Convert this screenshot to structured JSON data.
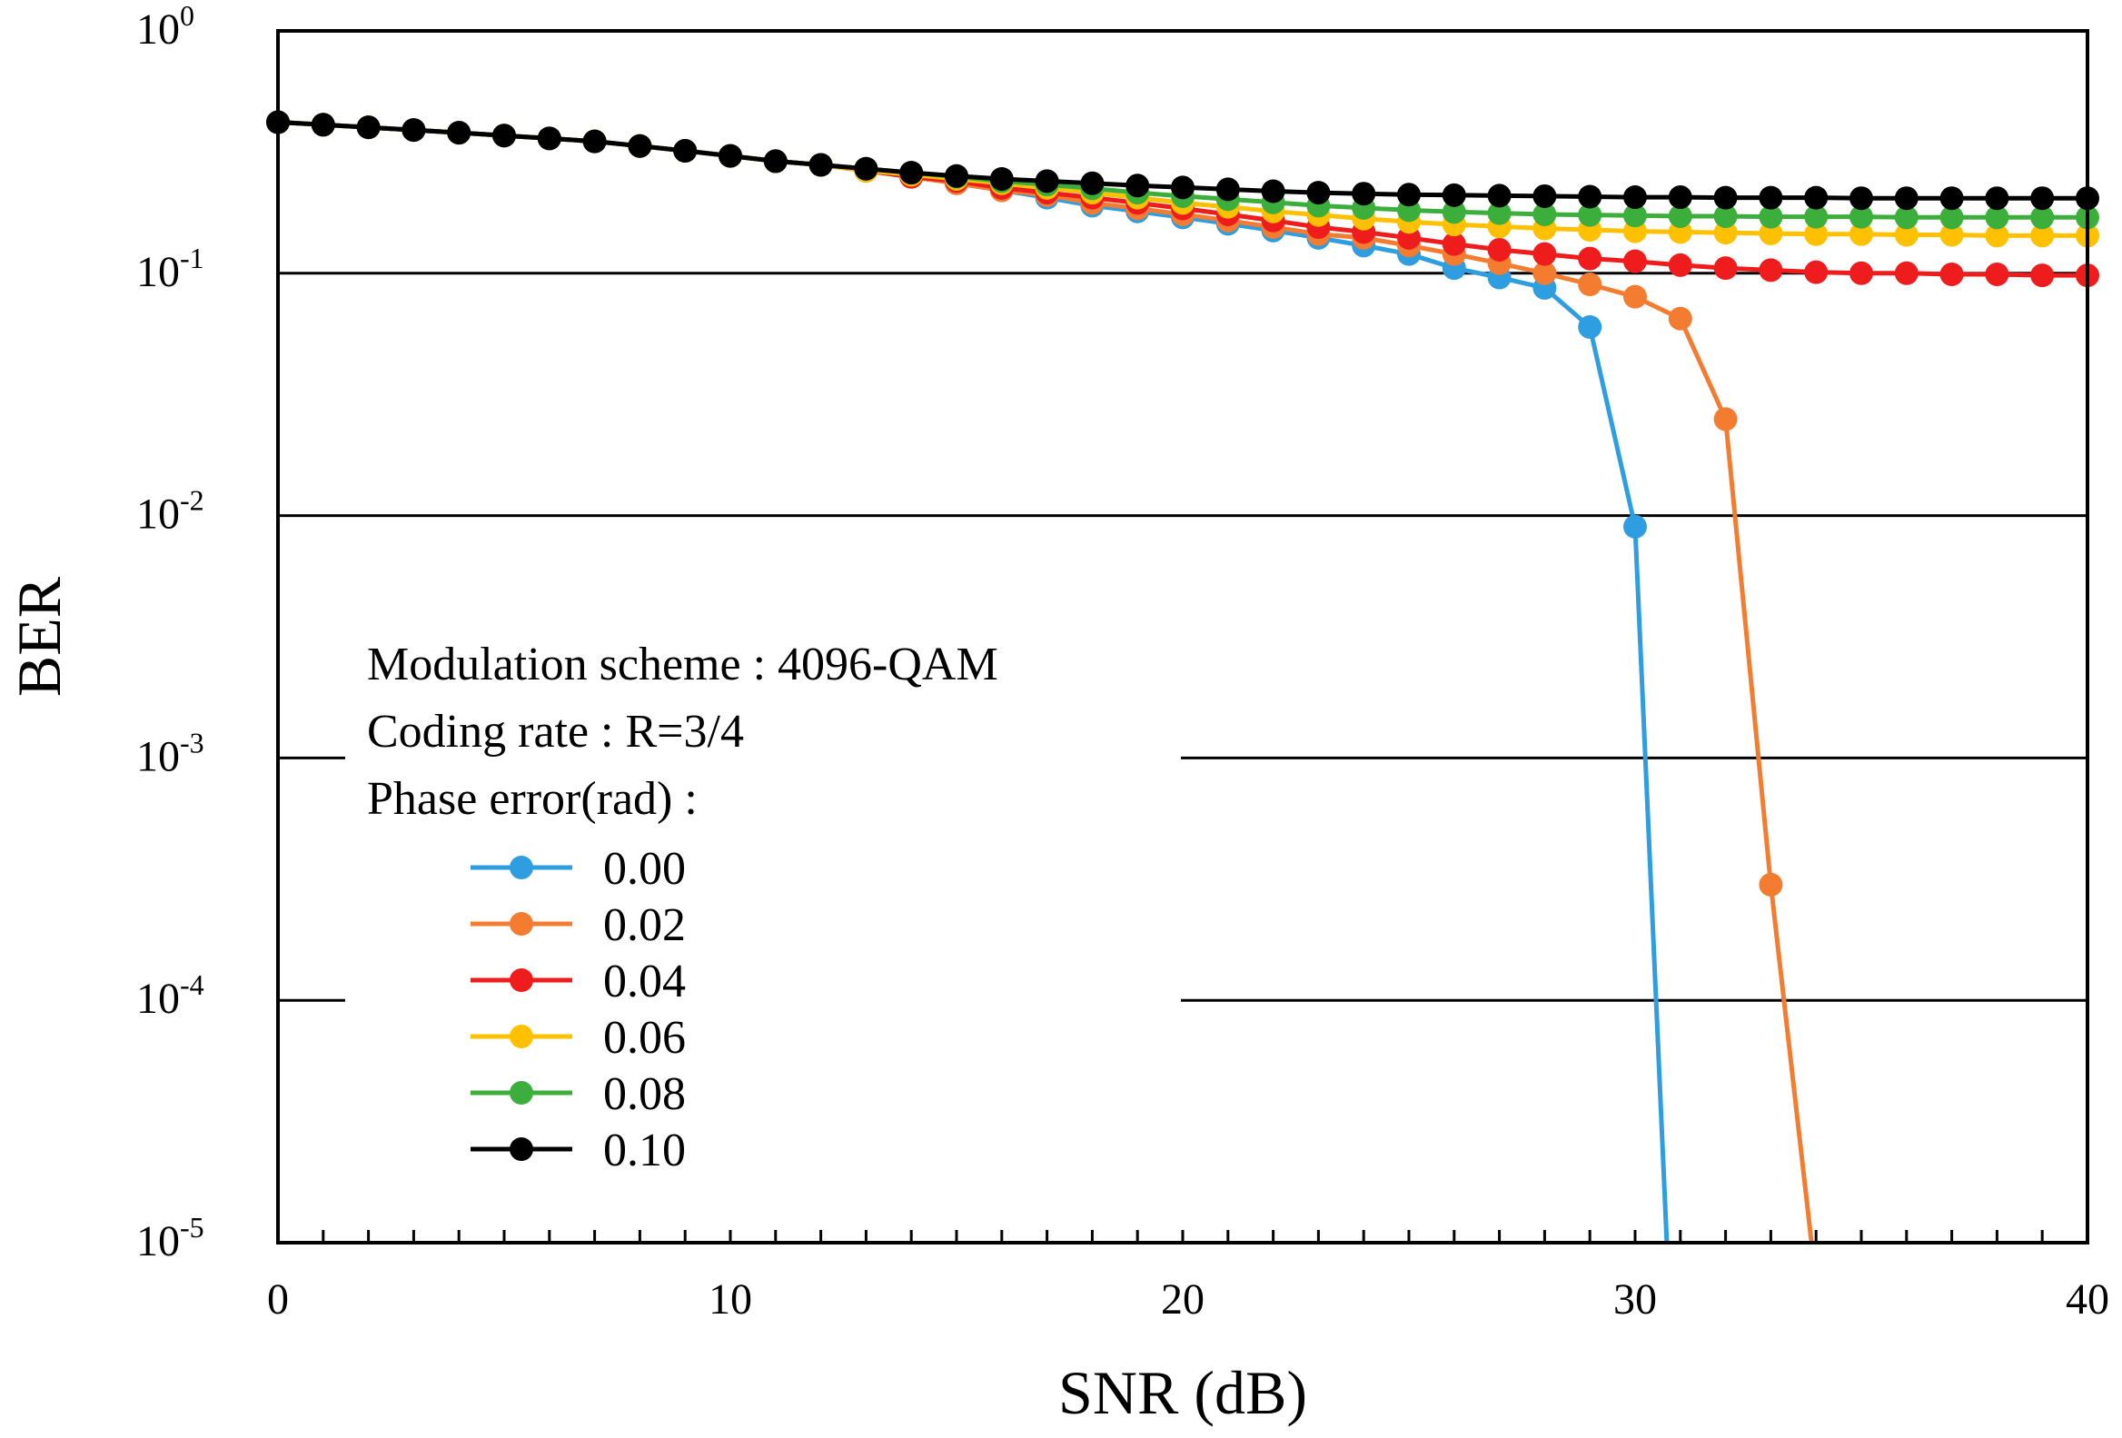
{
  "chart_data": {
    "type": "line",
    "title": "",
    "xlabel": "SNR (dB)",
    "ylabel": "BER",
    "xlim": [
      0,
      40
    ],
    "ylim": [
      1e-05,
      1
    ],
    "yscale": "log",
    "x_ticks": [
      0,
      10,
      20,
      30,
      40
    ],
    "x_tick_labels": [
      "0",
      "10",
      "20",
      "30",
      "40"
    ],
    "y_ticks": [
      1,
      0.1,
      0.01,
      0.001,
      0.0001,
      1e-05
    ],
    "y_tick_labels": [
      {
        "base": "10",
        "exp": "0"
      },
      {
        "base": "10",
        "exp": "-1"
      },
      {
        "base": "10",
        "exp": "-2"
      },
      {
        "base": "10",
        "exp": "-3"
      },
      {
        "base": "10",
        "exp": "-4"
      },
      {
        "base": "10",
        "exp": "-5"
      }
    ],
    "grid": "horizontal",
    "legend": {
      "placement": "bottom-left",
      "lines": [
        "Modulation scheme : 4096-QAM",
        "Coding rate : R=3/4",
        "Phase error(rad) :"
      ]
    },
    "series": [
      {
        "name": "0.00",
        "color": "#2e9ee0",
        "x": [
          0,
          1,
          2,
          3,
          4,
          5,
          6,
          7,
          8,
          9,
          10,
          11,
          12,
          13,
          14,
          15,
          16,
          17,
          18,
          19,
          20,
          21,
          22,
          23,
          24,
          25,
          26,
          27,
          28,
          29,
          30,
          30.7
        ],
        "y": [
          0.42,
          0.41,
          0.4,
          0.39,
          0.38,
          0.37,
          0.36,
          0.35,
          0.335,
          0.32,
          0.305,
          0.29,
          0.28,
          0.265,
          0.25,
          0.235,
          0.22,
          0.205,
          0.19,
          0.18,
          0.17,
          0.16,
          0.15,
          0.14,
          0.13,
          0.12,
          0.105,
          0.096,
          0.087,
          0.06,
          0.009,
          1e-05
        ],
        "markers_to": 30
      },
      {
        "name": "0.02",
        "color": "#f47c30",
        "x": [
          0,
          1,
          2,
          3,
          4,
          5,
          6,
          7,
          8,
          9,
          10,
          11,
          12,
          13,
          14,
          15,
          16,
          17,
          18,
          19,
          20,
          21,
          22,
          23,
          24,
          25,
          26,
          27,
          28,
          29,
          30,
          31,
          32,
          33,
          33.9
        ],
        "y": [
          0.42,
          0.41,
          0.4,
          0.39,
          0.38,
          0.37,
          0.36,
          0.35,
          0.335,
          0.32,
          0.305,
          0.29,
          0.28,
          0.265,
          0.25,
          0.235,
          0.22,
          0.21,
          0.195,
          0.185,
          0.175,
          0.165,
          0.155,
          0.145,
          0.14,
          0.13,
          0.12,
          0.11,
          0.1,
          0.09,
          0.08,
          0.065,
          0.025,
          0.0003,
          1e-05
        ],
        "markers_to": 33
      },
      {
        "name": "0.04",
        "color": "#ee1c1c",
        "x": [
          0,
          1,
          2,
          3,
          4,
          5,
          6,
          7,
          8,
          9,
          10,
          11,
          12,
          13,
          14,
          15,
          16,
          17,
          18,
          19,
          20,
          21,
          22,
          23,
          24,
          25,
          26,
          27,
          28,
          29,
          30,
          31,
          32,
          33,
          34,
          35,
          36,
          37,
          38,
          39,
          40
        ],
        "y": [
          0.42,
          0.41,
          0.4,
          0.39,
          0.38,
          0.37,
          0.36,
          0.35,
          0.335,
          0.32,
          0.305,
          0.29,
          0.28,
          0.265,
          0.25,
          0.24,
          0.225,
          0.215,
          0.205,
          0.195,
          0.185,
          0.175,
          0.165,
          0.155,
          0.148,
          0.14,
          0.132,
          0.125,
          0.12,
          0.115,
          0.112,
          0.108,
          0.105,
          0.103,
          0.101,
          0.1,
          0.1,
          0.099,
          0.099,
          0.098,
          0.098
        ],
        "markers_to": 40
      },
      {
        "name": "0.06",
        "color": "#ffc000",
        "x": [
          0,
          1,
          2,
          3,
          4,
          5,
          6,
          7,
          8,
          9,
          10,
          11,
          12,
          13,
          14,
          15,
          16,
          17,
          18,
          19,
          20,
          21,
          22,
          23,
          24,
          25,
          26,
          27,
          28,
          29,
          30,
          31,
          32,
          33,
          34,
          35,
          36,
          37,
          38,
          39,
          40
        ],
        "y": [
          0.42,
          0.41,
          0.4,
          0.39,
          0.38,
          0.37,
          0.36,
          0.35,
          0.335,
          0.32,
          0.305,
          0.29,
          0.28,
          0.265,
          0.255,
          0.245,
          0.235,
          0.225,
          0.215,
          0.205,
          0.195,
          0.188,
          0.18,
          0.174,
          0.168,
          0.163,
          0.159,
          0.156,
          0.153,
          0.151,
          0.149,
          0.148,
          0.147,
          0.146,
          0.145,
          0.145,
          0.144,
          0.144,
          0.143,
          0.143,
          0.143
        ],
        "markers_to": 40
      },
      {
        "name": "0.08",
        "color": "#3cae3c",
        "x": [
          0,
          1,
          2,
          3,
          4,
          5,
          6,
          7,
          8,
          9,
          10,
          11,
          12,
          13,
          14,
          15,
          16,
          17,
          18,
          19,
          20,
          21,
          22,
          23,
          24,
          25,
          26,
          27,
          28,
          29,
          30,
          31,
          32,
          33,
          34,
          35,
          36,
          37,
          38,
          39,
          40
        ],
        "y": [
          0.42,
          0.41,
          0.4,
          0.39,
          0.38,
          0.37,
          0.36,
          0.35,
          0.335,
          0.32,
          0.305,
          0.29,
          0.28,
          0.27,
          0.26,
          0.25,
          0.24,
          0.232,
          0.224,
          0.215,
          0.208,
          0.202,
          0.196,
          0.19,
          0.186,
          0.182,
          0.179,
          0.177,
          0.175,
          0.174,
          0.173,
          0.172,
          0.172,
          0.171,
          0.171,
          0.171,
          0.17,
          0.17,
          0.17,
          0.17,
          0.17
        ],
        "markers_to": 40
      },
      {
        "name": "0.10",
        "color": "#000000",
        "x": [
          0,
          1,
          2,
          3,
          4,
          5,
          6,
          7,
          8,
          9,
          10,
          11,
          12,
          13,
          14,
          15,
          16,
          17,
          18,
          19,
          20,
          21,
          22,
          23,
          24,
          25,
          26,
          27,
          28,
          29,
          30,
          31,
          32,
          33,
          34,
          35,
          36,
          37,
          38,
          39,
          40
        ],
        "y": [
          0.42,
          0.41,
          0.4,
          0.39,
          0.38,
          0.37,
          0.36,
          0.35,
          0.335,
          0.32,
          0.305,
          0.29,
          0.28,
          0.27,
          0.26,
          0.252,
          0.245,
          0.24,
          0.235,
          0.23,
          0.226,
          0.222,
          0.218,
          0.215,
          0.213,
          0.211,
          0.21,
          0.209,
          0.208,
          0.207,
          0.206,
          0.206,
          0.205,
          0.205,
          0.205,
          0.204,
          0.204,
          0.204,
          0.204,
          0.204,
          0.204
        ],
        "markers_to": 40
      }
    ]
  }
}
